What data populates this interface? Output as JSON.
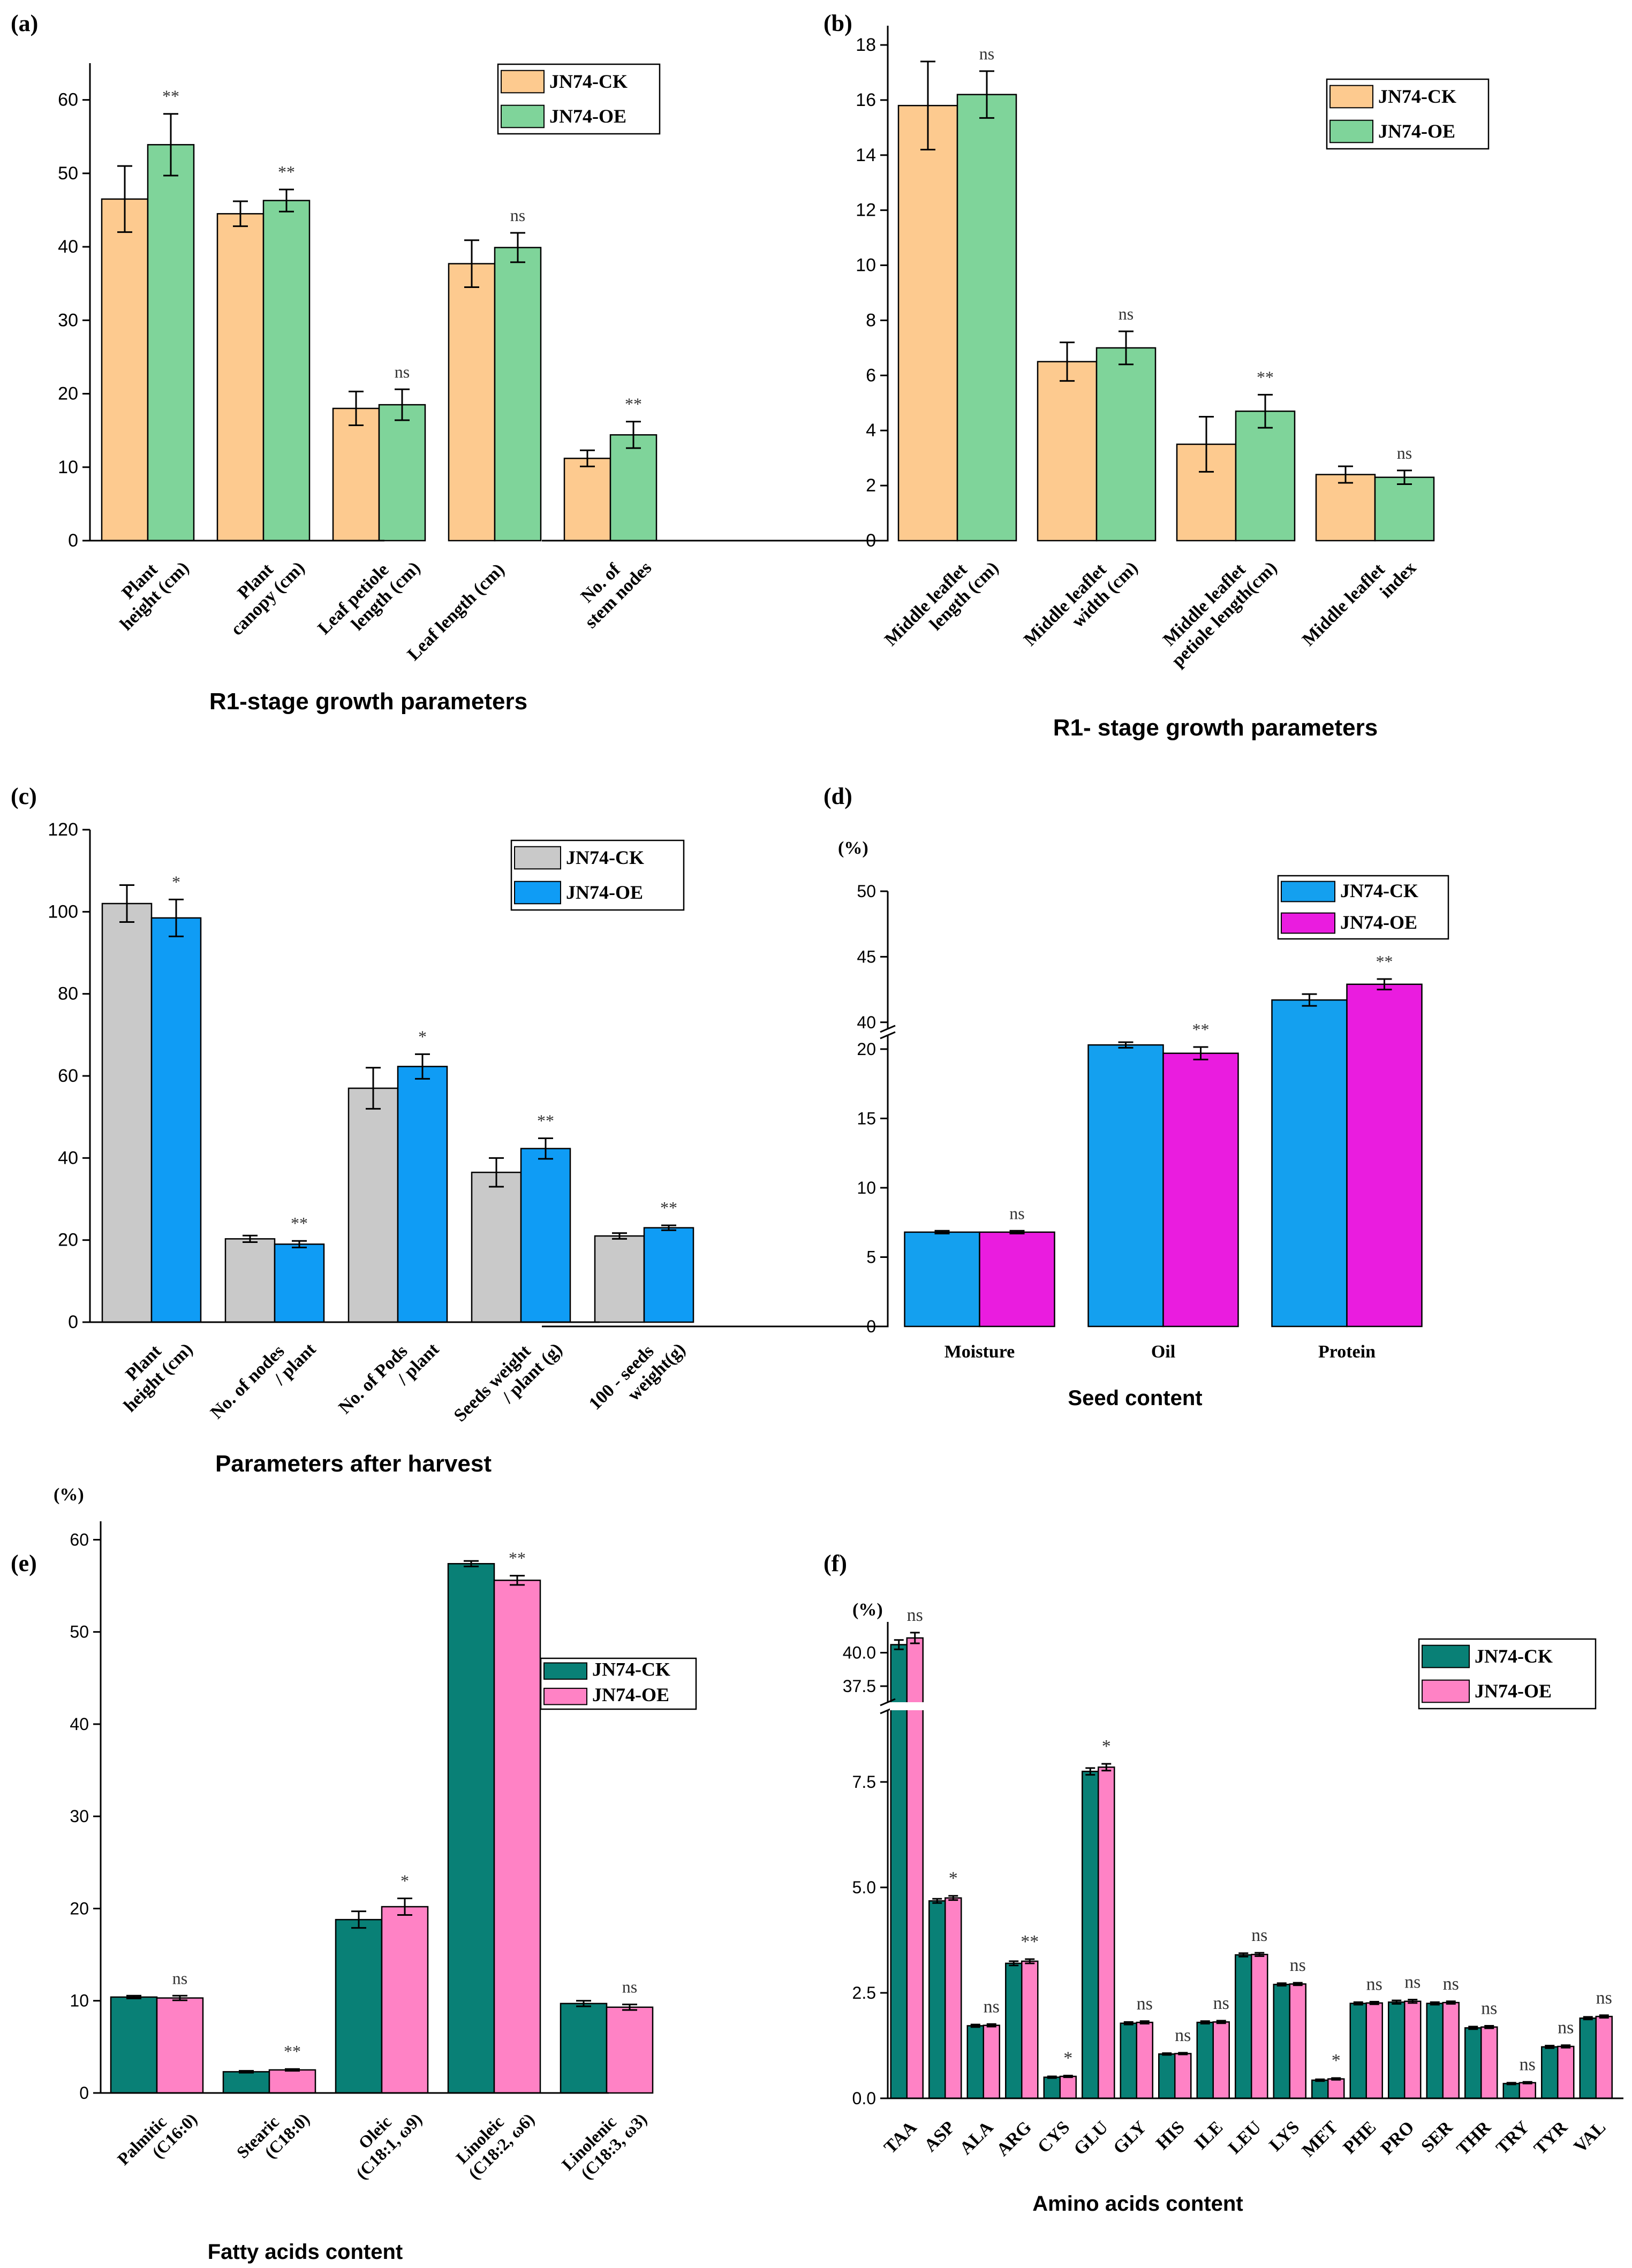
{
  "chart_data": [
    {
      "panel": "(a)",
      "type": "bar",
      "xlabel": "R1-stage growth parameters",
      "ylabel": "",
      "ylim": [
        0,
        65
      ],
      "yticks": [
        0,
        10,
        20,
        30,
        40,
        50,
        60
      ],
      "categories": [
        [
          "Plant",
          "height (cm)"
        ],
        [
          "Plant",
          "canopy (cm)"
        ],
        [
          "Leaf petiole",
          "length (cm)"
        ],
        [
          "Leaf length (cm)"
        ],
        [
          "No. of",
          "stem nodes"
        ]
      ],
      "series": [
        {
          "name": "JN74-CK",
          "color": "#fdca8f",
          "values": [
            46.5,
            44.5,
            18.0,
            37.7,
            11.2
          ],
          "errors": [
            4.5,
            1.7,
            2.3,
            3.2,
            1.1
          ]
        },
        {
          "name": "JN74-OE",
          "color": "#7fd49a",
          "values": [
            53.9,
            46.3,
            18.5,
            39.9,
            14.4
          ],
          "errors": [
            4.2,
            1.5,
            2.1,
            2.0,
            1.8
          ]
        }
      ],
      "significance": [
        "**",
        "**",
        "ns",
        "ns",
        "**"
      ],
      "legend_position": "top-right"
    },
    {
      "panel": "(b)",
      "type": "bar",
      "xlabel": "R1- stage growth parameters",
      "ylabel": "",
      "ylim": [
        0,
        18.7
      ],
      "yticks": [
        0,
        2,
        4,
        6,
        8,
        10,
        12,
        14,
        16,
        18
      ],
      "categories": [
        [
          "Middle leaflet",
          "length (cm)"
        ],
        [
          "Middle leaflet",
          "width (cm)"
        ],
        [
          "Middle leaflet",
          "petiole length(cm)"
        ],
        [
          "Middle leaflet",
          "index"
        ]
      ],
      "series": [
        {
          "name": "JN74-CK",
          "color": "#fdca8f",
          "values": [
            15.8,
            6.5,
            3.5,
            2.4
          ],
          "errors": [
            1.6,
            0.7,
            1.0,
            0.3
          ]
        },
        {
          "name": "JN74-OE",
          "color": "#7fd49a",
          "values": [
            16.2,
            7.0,
            4.7,
            2.3
          ],
          "errors": [
            0.85,
            0.6,
            0.6,
            0.25
          ]
        }
      ],
      "significance": [
        "ns",
        "ns",
        "**",
        "ns"
      ],
      "legend_position": "top-right"
    },
    {
      "panel": "(c)",
      "type": "bar",
      "xlabel": "Parameters after harvest",
      "ylabel": "",
      "ylim": [
        0,
        120
      ],
      "yticks": [
        0,
        20,
        40,
        60,
        80,
        100,
        120
      ],
      "categories": [
        [
          "Plant",
          "height (cm)"
        ],
        [
          "No. of nodes",
          "/ plant"
        ],
        [
          "No. of Pods",
          "/ plant"
        ],
        [
          "Seeds weight",
          "/ plant (g)"
        ],
        [
          "100 - seeds",
          "weight(g)"
        ]
      ],
      "series": [
        {
          "name": "JN74-CK",
          "color": "#c9c9c9",
          "values": [
            102,
            20.3,
            57,
            36.5,
            21
          ],
          "errors": [
            4.5,
            0.8,
            5,
            3.5,
            0.7
          ]
        },
        {
          "name": "JN74-OE",
          "color": "#0f9cf5",
          "values": [
            98.5,
            19,
            62.3,
            42.3,
            23
          ],
          "errors": [
            4.5,
            0.8,
            3,
            2.5,
            0.6
          ]
        }
      ],
      "significance": [
        "*",
        "**",
        "*",
        "**",
        "**"
      ],
      "legend_position": "top-right"
    },
    {
      "panel": "(d)",
      "type": "bar",
      "xlabel": "Seed content",
      "ylabel": "(%)",
      "yaxis_break": {
        "lower": [
          0,
          21
        ],
        "upper": [
          39.5,
          50
        ]
      },
      "yticks_lower": [
        0,
        5,
        10,
        15,
        20
      ],
      "yticks_upper": [
        40,
        45,
        50
      ],
      "categories": [
        "Moisture",
        "Oil",
        "Protein"
      ],
      "series": [
        {
          "name": "JN74-CK",
          "color": "#14a0ef",
          "values": [
            6.8,
            20.3,
            41.7
          ],
          "errors": [
            0.1,
            0.2,
            0.45
          ]
        },
        {
          "name": "JN74-OE",
          "color": "#ea1cdf",
          "values": [
            6.8,
            19.7,
            42.9
          ],
          "errors": [
            0.1,
            0.45,
            0.4
          ]
        }
      ],
      "significance": [
        "ns",
        "**",
        "**"
      ],
      "legend_position": "top-right"
    },
    {
      "panel": "(e)",
      "type": "bar",
      "xlabel": "Fatty acids content",
      "ylabel": "(%)",
      "ylim": [
        0,
        62
      ],
      "yticks": [
        0,
        10,
        20,
        30,
        40,
        50,
        60
      ],
      "categories": [
        [
          "Palmitic",
          "(C16:0)"
        ],
        [
          "Stearic",
          "(C18:0)"
        ],
        [
          "Oleic",
          "(C18:1, ω9)"
        ],
        [
          "Linoleic",
          "(C18:2, ω6)"
        ],
        [
          "Linolenic",
          "(C18:3, ω3)"
        ]
      ],
      "series": [
        {
          "name": "JN74-CK",
          "color": "#098076",
          "values": [
            10.4,
            2.3,
            18.8,
            57.4,
            9.7
          ],
          "errors": [
            0.15,
            0.1,
            0.9,
            0.3,
            0.3
          ]
        },
        {
          "name": "JN74-OE",
          "color": "#ff82c5",
          "values": [
            10.3,
            2.5,
            20.2,
            55.6,
            9.3
          ],
          "errors": [
            0.25,
            0.1,
            0.9,
            0.5,
            0.3
          ]
        }
      ],
      "significance": [
        "ns",
        "**",
        "*",
        "**",
        "ns"
      ],
      "legend_position": "top-right"
    },
    {
      "panel": "(f)",
      "type": "bar",
      "xlabel": "Amino acids content",
      "ylabel": "(%)",
      "yaxis_break": {
        "lower": [
          0,
          9.2
        ],
        "upper": [
          36.3,
          42.3
        ]
      },
      "yticks_lower": [
        "0.0",
        "2.5",
        "5.0",
        "7.5"
      ],
      "yticks_upper": [
        "37.5",
        "40.0"
      ],
      "categories": [
        "TAA",
        "ASP",
        "ALA",
        "ARG",
        "CYS",
        "GLU",
        "GLY",
        "HIS",
        "ILE",
        "LEU",
        "LYS",
        "MET",
        "PHE",
        "PRO",
        "SER",
        "THR",
        "TRY",
        "TYR",
        "VAL"
      ],
      "series": [
        {
          "name": "JN74-CK",
          "color": "#098076",
          "values": [
            40.6,
            4.68,
            1.72,
            3.2,
            0.5,
            7.75,
            1.78,
            1.05,
            1.8,
            3.4,
            2.7,
            0.43,
            2.25,
            2.28,
            2.25,
            1.67,
            0.35,
            1.22,
            1.9
          ],
          "errors": [
            0.35,
            0.05,
            0.03,
            0.05,
            0.02,
            0.08,
            0.03,
            0.02,
            0.03,
            0.04,
            0.03,
            0.02,
            0.03,
            0.04,
            0.03,
            0.03,
            0.02,
            0.03,
            0.03
          ]
        },
        {
          "name": "JN74-OE",
          "color": "#ff82c5",
          "values": [
            41.1,
            4.75,
            1.73,
            3.25,
            0.52,
            7.85,
            1.8,
            1.06,
            1.81,
            3.41,
            2.71,
            0.46,
            2.26,
            2.3,
            2.27,
            1.69,
            0.37,
            1.23,
            1.94
          ],
          "errors": [
            0.4,
            0.05,
            0.03,
            0.05,
            0.02,
            0.08,
            0.03,
            0.02,
            0.03,
            0.04,
            0.03,
            0.02,
            0.03,
            0.04,
            0.03,
            0.03,
            0.02,
            0.03,
            0.03
          ]
        }
      ],
      "significance": [
        "ns",
        "*",
        "ns",
        "**",
        "*",
        "*",
        "ns",
        "ns",
        "ns",
        "ns",
        "ns",
        "*",
        "ns",
        "ns",
        "ns",
        "ns",
        "ns",
        "ns",
        "ns"
      ],
      "legend_position": "top-right"
    }
  ]
}
